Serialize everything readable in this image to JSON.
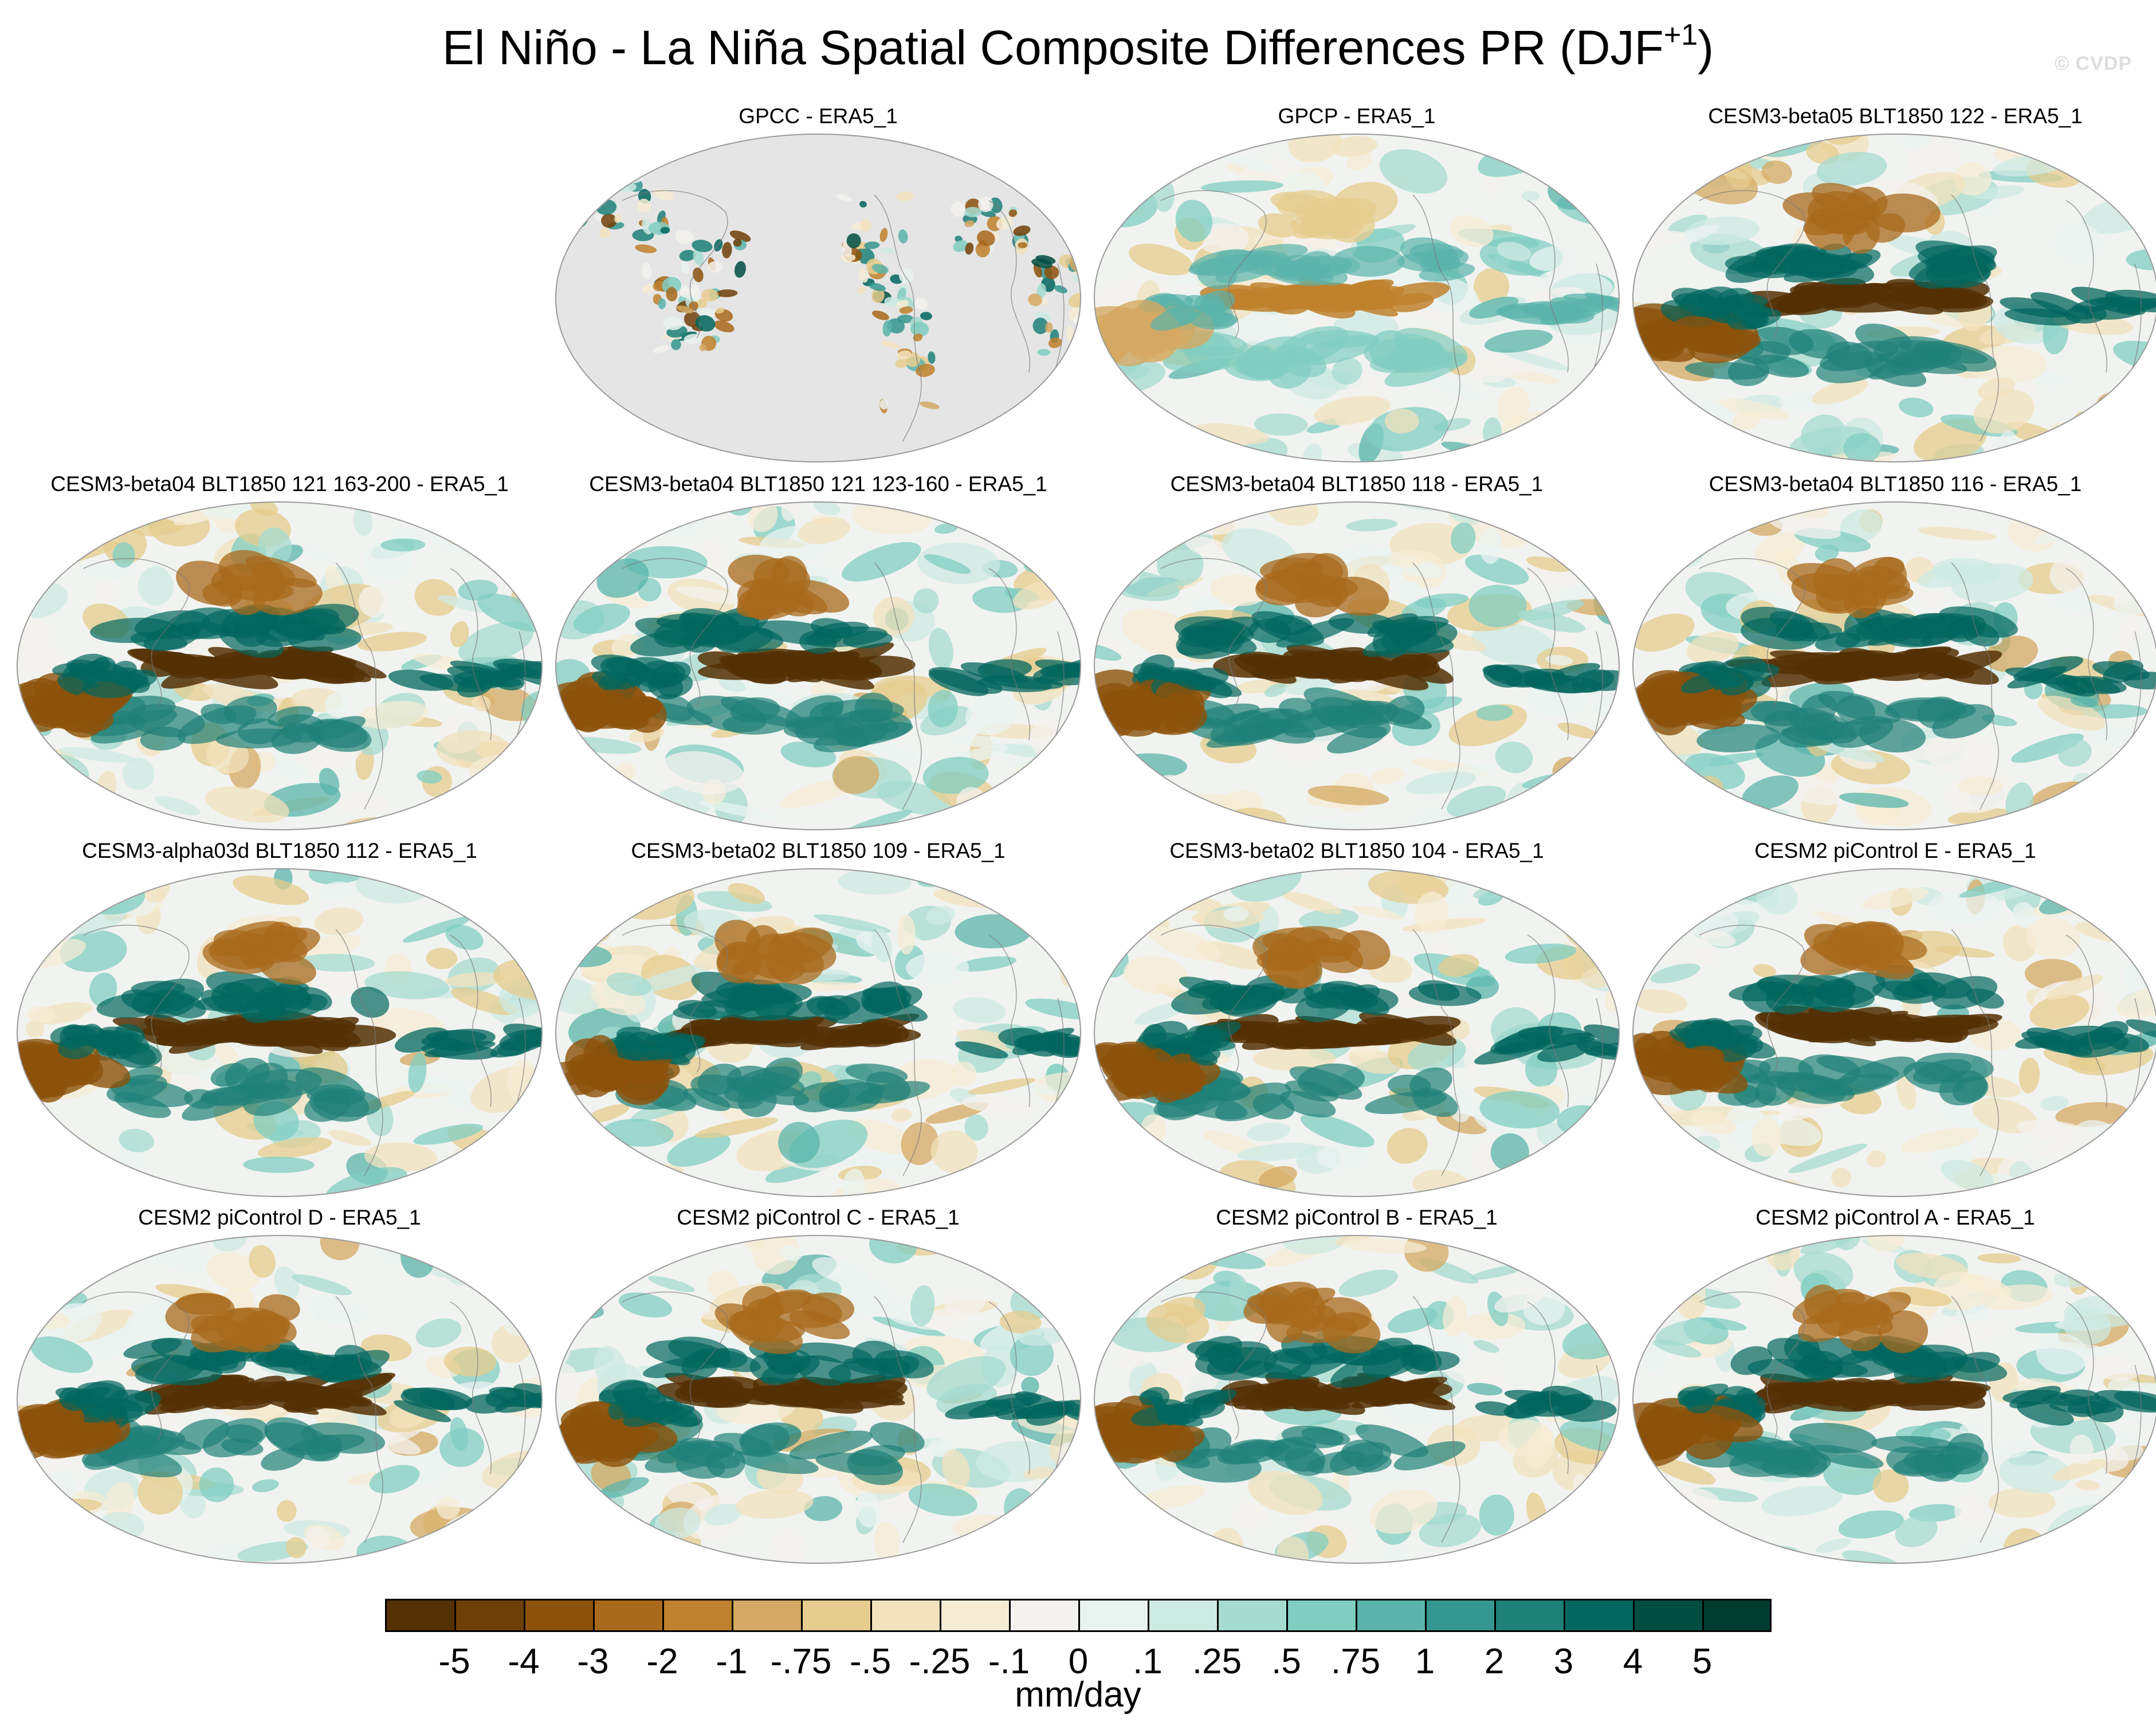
{
  "title": {
    "main": "El Niño - La Niña Spatial Composite Differences PR (DJF",
    "superscript": "+1",
    "close": ")"
  },
  "watermark": "© CVDP",
  "colorbar": {
    "units": "mm/day",
    "labels": [
      "-5",
      "-4",
      "-3",
      "-2",
      "-1",
      "-.75",
      "-.5",
      "-.25",
      "-.1",
      "0",
      ".1",
      ".25",
      ".5",
      ".75",
      "1",
      "2",
      "3",
      "4",
      "5"
    ],
    "colors": [
      "#543005",
      "#6f3f08",
      "#8c510a",
      "#a8691c",
      "#bf812d",
      "#d4a963",
      "#e6cc8e",
      "#f2e2bd",
      "#f6ecd5",
      "#f4f2ee",
      "#e9f3f0",
      "#cdeae3",
      "#a6dbd0",
      "#80cdc1",
      "#5ab4ab",
      "#35978f",
      "#1f8078",
      "#01665e",
      "#014d42",
      "#003c30"
    ]
  },
  "panels": [
    {
      "title": "GPCC - ERA5_1",
      "variant": "gpcc",
      "seed": 3
    },
    {
      "title": "GPCP - ERA5_1",
      "variant": "obs",
      "seed": 11
    },
    {
      "title": "CESM3-beta05 BLT1850 122 - ERA5_1",
      "variant": "model",
      "seed": 17
    },
    {
      "title": "CESM3-beta04 BLT1850 121 163-200 - ERA5_1",
      "variant": "model",
      "seed": 23
    },
    {
      "title": "CESM3-beta04 BLT1850 121 123-160 - ERA5_1",
      "variant": "model",
      "seed": 29
    },
    {
      "title": "CESM3-beta04 BLT1850 118 - ERA5_1",
      "variant": "model",
      "seed": 31
    },
    {
      "title": "CESM3-beta04 BLT1850 116 - ERA5_1",
      "variant": "model",
      "seed": 37
    },
    {
      "title": "CESM3-alpha03d BLT1850 112 - ERA5_1",
      "variant": "model",
      "seed": 41
    },
    {
      "title": "CESM3-beta02 BLT1850 109 - ERA5_1",
      "variant": "model",
      "seed": 43
    },
    {
      "title": "CESM3-beta02 BLT1850 104 - ERA5_1",
      "variant": "model",
      "seed": 47
    },
    {
      "title": "CESM2 piControl E - ERA5_1",
      "variant": "cesm2",
      "seed": 53
    },
    {
      "title": "CESM2 piControl D - ERA5_1",
      "variant": "cesm2",
      "seed": 59
    },
    {
      "title": "CESM2 piControl C - ERA5_1",
      "variant": "cesm2",
      "seed": 61
    },
    {
      "title": "CESM2 piControl B - ERA5_1",
      "variant": "cesm2",
      "seed": 67
    },
    {
      "title": "CESM2 piControl A - ERA5_1",
      "variant": "cesm2",
      "seed": 71
    }
  ]
}
